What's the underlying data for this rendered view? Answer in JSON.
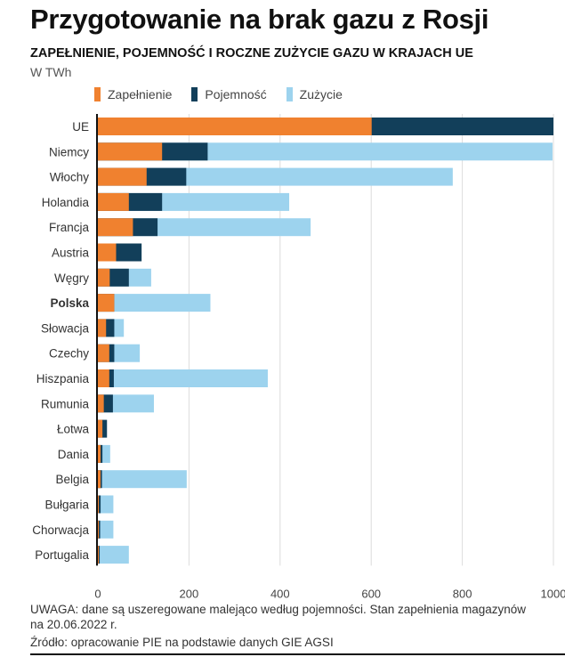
{
  "title": "Przygotowanie na brak gazu z Rosji",
  "subtitle": "ZAPEŁNIENIE, POJEMNOŚĆ I ROCZNE ZUŻYCIE GAZU W KRAJACH UE",
  "unit": "W TWh",
  "note": "UWAGA: dane są uszeregowane malejąco według pojemności. Stan zapełnienia magazynów na 20.06.2022 r.",
  "source": "Źródło: opracowanie PIE na podstawie danych GIE AGSI",
  "chart_data": {
    "type": "bar",
    "orientation": "horizontal",
    "layering": "overlapping",
    "xlim": [
      0,
      1000
    ],
    "xticks": [
      "0",
      "200",
      "400",
      "600",
      "800",
      "1000"
    ],
    "grid": true,
    "legend_position": "top",
    "highlight_category": "Polska",
    "categories": [
      "UE",
      "Niemcy",
      "Włochy",
      "Holandia",
      "Francja",
      "Austria",
      "Węgry",
      "Polska",
      "Słowacja",
      "Czechy",
      "Hiszpania",
      "Rumunia",
      "Łotwa",
      "Dania",
      "Belgia",
      "Bułgaria",
      "Chorwacja",
      "Portugalia"
    ],
    "series": [
      {
        "name": "Zużycie",
        "color": "#9dd3ee",
        "values": [
          1000,
          998,
          779,
          420,
          467,
          90,
          117,
          247,
          57,
          92,
          373,
          123,
          12,
          27,
          195,
          34,
          34,
          68
        ]
      },
      {
        "name": "Pojemność",
        "color": "#123f5a",
        "values": [
          1000,
          241,
          194,
          141,
          131,
          96,
          68,
          36,
          36,
          36,
          35,
          33,
          20,
          10,
          9,
          6,
          5,
          4
        ]
      },
      {
        "name": "Zapełnienie",
        "color": "#f0812f",
        "values": [
          601,
          141,
          107,
          68,
          77,
          40,
          26,
          36,
          18,
          25,
          25,
          13,
          10,
          6,
          6,
          2,
          2,
          2
        ]
      }
    ],
    "legend_order": [
      "Zapełnienie",
      "Pojemność",
      "Zużycie"
    ]
  }
}
